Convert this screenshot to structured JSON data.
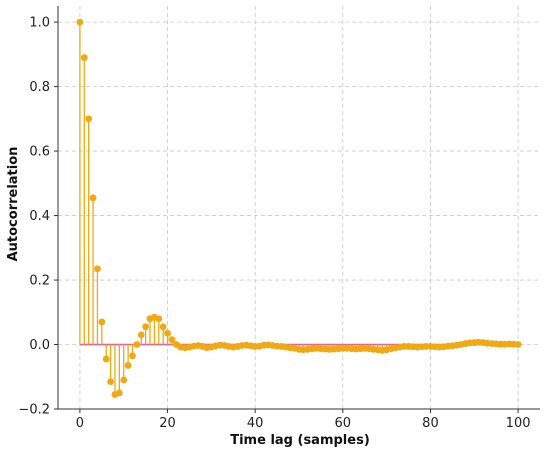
{
  "chart_data": {
    "type": "stem",
    "title": "",
    "xlabel": "Time lag (samples)",
    "ylabel": "Autocorrelation",
    "xlim": [
      -5,
      105
    ],
    "ylim": [
      -0.2,
      1.05
    ],
    "xticks": [
      0,
      20,
      40,
      60,
      80,
      100
    ],
    "xtick_labels": [
      "0",
      "20",
      "40",
      "60",
      "80",
      "100"
    ],
    "yticks": [
      -0.2,
      0.0,
      0.2,
      0.4,
      0.6,
      0.8,
      1.0
    ],
    "ytick_labels": [
      "−0.2",
      "0.0",
      "0.2",
      "0.4",
      "0.6",
      "0.8",
      "1.0"
    ],
    "grid": true,
    "baseline": 0,
    "series": [
      {
        "color": "#f2a813",
        "baseline_color": "#e0609f",
        "x": [
          0,
          1,
          2,
          3,
          4,
          5,
          6,
          7,
          8,
          9,
          10,
          11,
          12,
          13,
          14,
          15,
          16,
          17,
          18,
          19,
          20,
          21,
          22,
          23,
          24,
          25,
          26,
          27,
          28,
          29,
          30,
          31,
          32,
          33,
          34,
          35,
          36,
          37,
          38,
          39,
          40,
          41,
          42,
          43,
          44,
          45,
          46,
          47,
          48,
          49,
          50,
          51,
          52,
          53,
          54,
          55,
          56,
          57,
          58,
          59,
          60,
          61,
          62,
          63,
          64,
          65,
          66,
          67,
          68,
          69,
          70,
          71,
          72,
          73,
          74,
          75,
          76,
          77,
          78,
          79,
          80,
          81,
          82,
          83,
          84,
          85,
          86,
          87,
          88,
          89,
          90,
          91,
          92,
          93,
          94,
          95,
          96,
          97,
          98,
          99,
          100
        ],
        "values": [
          1.0,
          0.89,
          0.7,
          0.455,
          0.235,
          0.07,
          -0.045,
          -0.115,
          -0.155,
          -0.15,
          -0.11,
          -0.065,
          -0.035,
          0.0,
          0.03,
          0.055,
          0.08,
          0.085,
          0.08,
          0.055,
          0.035,
          0.015,
          0.0,
          -0.008,
          -0.01,
          -0.008,
          -0.005,
          -0.003,
          -0.006,
          -0.01,
          -0.008,
          -0.004,
          -0.002,
          -0.003,
          -0.006,
          -0.008,
          -0.006,
          -0.003,
          -0.002,
          -0.004,
          -0.006,
          -0.005,
          -0.002,
          -0.001,
          -0.003,
          -0.005,
          -0.006,
          -0.008,
          -0.01,
          -0.012,
          -0.015,
          -0.016,
          -0.015,
          -0.013,
          -0.012,
          -0.013,
          -0.014,
          -0.015,
          -0.014,
          -0.013,
          -0.012,
          -0.012,
          -0.013,
          -0.014,
          -0.013,
          -0.012,
          -0.013,
          -0.015,
          -0.016,
          -0.018,
          -0.016,
          -0.013,
          -0.01,
          -0.008,
          -0.006,
          -0.006,
          -0.007,
          -0.008,
          -0.007,
          -0.006,
          -0.006,
          -0.007,
          -0.008,
          -0.007,
          -0.005,
          -0.004,
          -0.002,
          0.0,
          0.003,
          0.005,
          0.006,
          0.007,
          0.006,
          0.004,
          0.003,
          0.002,
          0.001,
          0.001,
          0.002,
          0.001,
          0.0
        ]
      }
    ]
  }
}
